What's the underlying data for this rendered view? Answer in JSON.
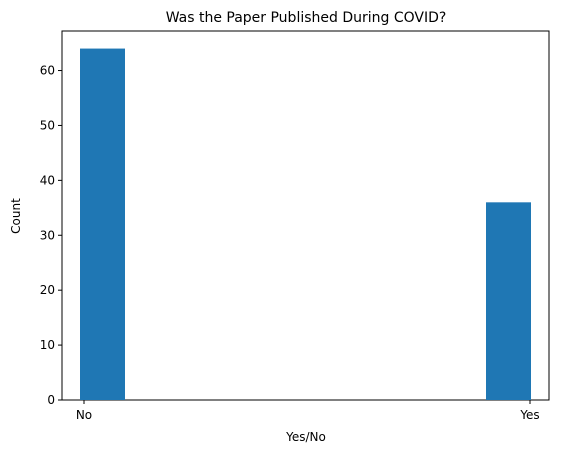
{
  "chart_data": {
    "type": "bar",
    "title": "Was the Paper Published During COVID?",
    "xlabel": "Yes/No",
    "ylabel": "Count",
    "categories": [
      "No",
      "Yes"
    ],
    "values": [
      64,
      36
    ],
    "ylim": [
      0,
      67.2
    ],
    "yticks": [
      0,
      10,
      20,
      30,
      40,
      50,
      60
    ],
    "grid": false,
    "legend": "none",
    "bar_color": "#1f77b4"
  }
}
